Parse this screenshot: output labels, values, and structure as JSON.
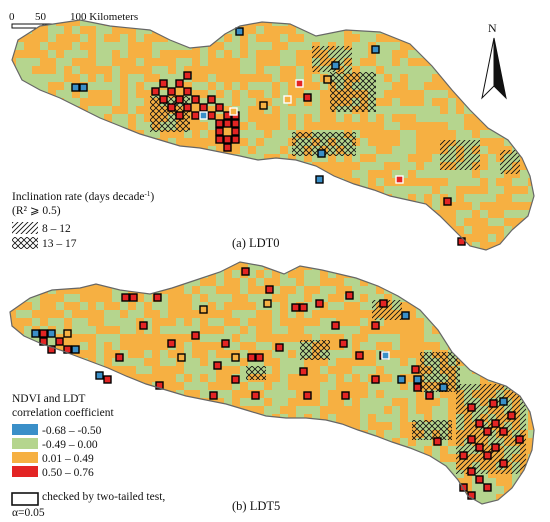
{
  "scale_bar": {
    "ticks": [
      "0",
      "50",
      "100 Kilometers"
    ]
  },
  "north_arrow": {
    "label": "N",
    "icon": "north-arrow-icon"
  },
  "colors": {
    "neg_strong": "#3a8fc8",
    "neg_weak": "#b5d58e",
    "pos_weak": "#f6b042",
    "pos_strong": "#e32424",
    "outline": "#666666",
    "test_box": "#000000",
    "light_box": "#ffffff"
  },
  "panel_a": {
    "label": "(a) LDT0",
    "legend": {
      "title_main": "Inclination rate (days decade",
      "title_sup": "-1",
      "title_close": ")",
      "subtitle": "(R² ⩾ 0.5)",
      "items": [
        {
          "pattern": "hatch-diagonal",
          "label": "8 – 12"
        },
        {
          "pattern": "hatch-cross",
          "label": "13 – 17"
        }
      ]
    }
  },
  "panel_b": {
    "label": "(b) LDT5",
    "legend": {
      "title_line1": "NDVI and LDT",
      "title_line2": "correlation coefficient",
      "classes": [
        {
          "color_key": "neg_strong",
          "label": "-0.68 – -0.50"
        },
        {
          "color_key": "neg_weak",
          "label": "-0.49 – 0.00"
        },
        {
          "color_key": "pos_weak",
          "label": "0.01 – 0.49"
        },
        {
          "color_key": "pos_strong",
          "label": "0.50 – 0.76"
        }
      ],
      "test_line1": "checked by two-tailed test,",
      "test_line2": "α=0.05"
    }
  }
}
